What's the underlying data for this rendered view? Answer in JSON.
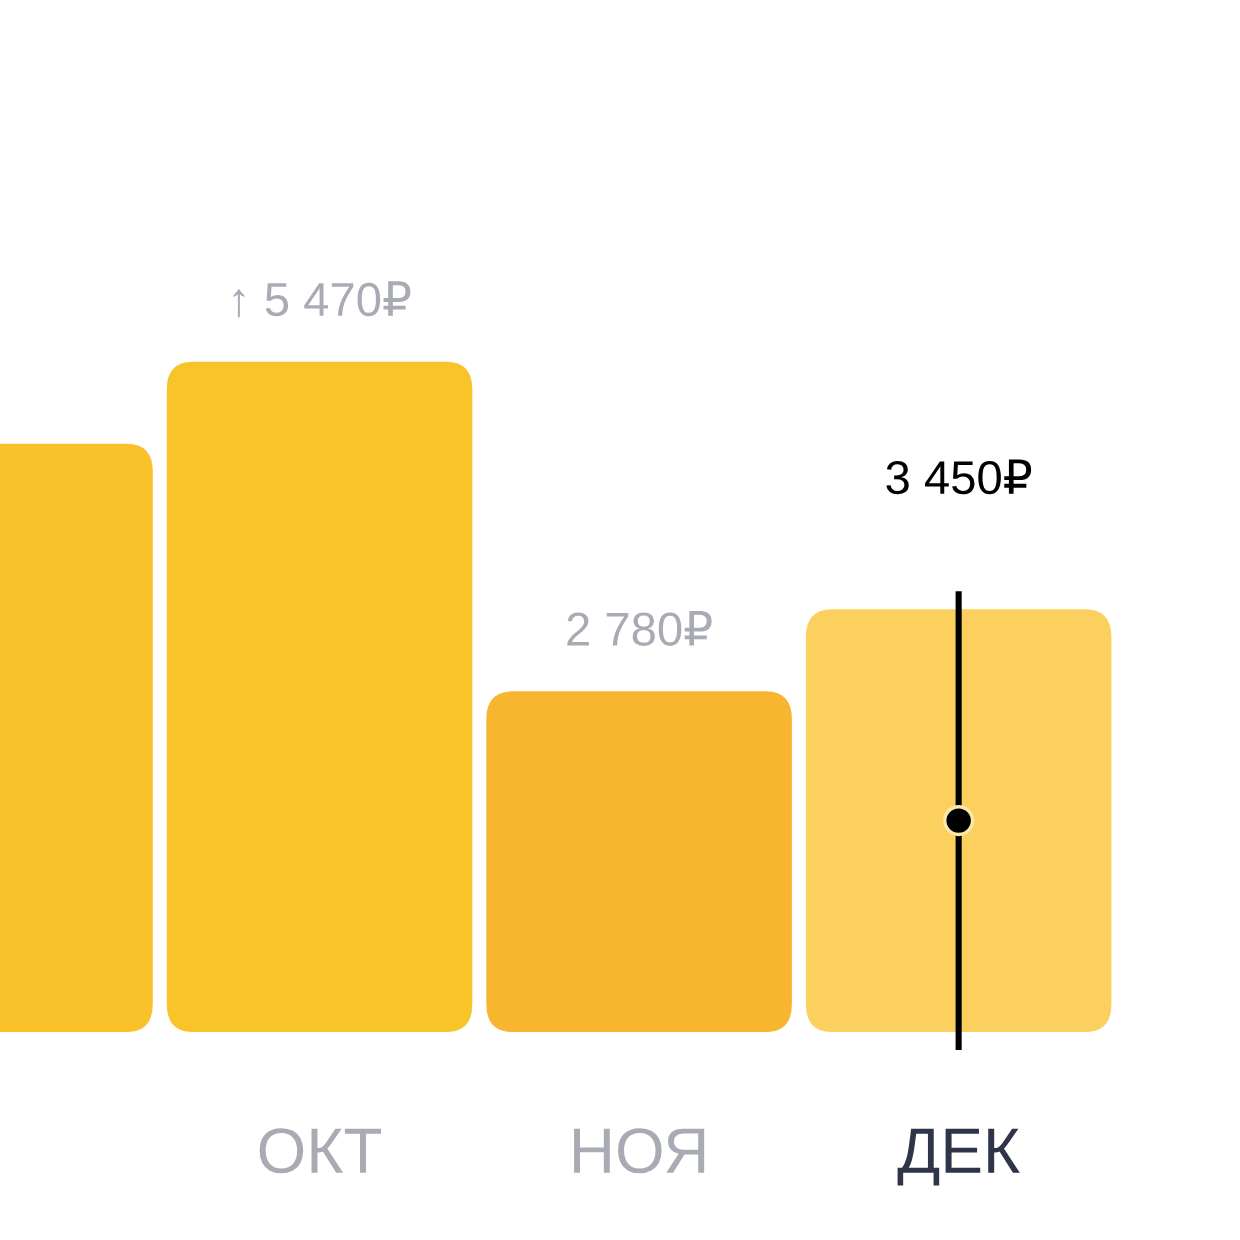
{
  "chart_data": {
    "type": "bar",
    "categories": [
      null,
      "ОКТ",
      "НОЯ",
      "ДЕК"
    ],
    "values": [
      4800,
      5470,
      2780,
      3450
    ],
    "colors": [
      "#f9c22a",
      "#f9c42a",
      "#f7b530",
      "#fbd05e"
    ],
    "value_labels": [
      null,
      "↑ 5 470₽",
      "2 780₽",
      "3 450₽"
    ],
    "ref_lines": [
      {
        "axis": "x",
        "value": "ДЕК",
        "color": "#000000"
      }
    ]
  }
}
